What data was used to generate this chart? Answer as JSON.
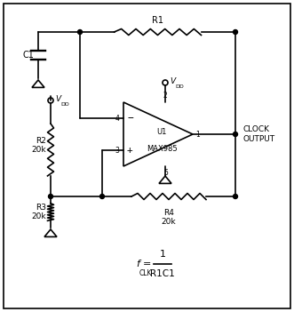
{
  "fig_width": 3.31,
  "fig_height": 3.51,
  "dpi": 100,
  "line_color": "#000000",
  "comp_label_1": "U1",
  "comp_label_2": "MAX985",
  "output_label": "CLOCK\nOUTPUT",
  "r1_label": "R1",
  "r2_label": "R2\n20k",
  "r3_label": "R3\n20k",
  "r4_label": "R4\n20k",
  "c1_label": "C1",
  "vdd_label": "V",
  "vdd_sub": "DD",
  "formula_f": "f",
  "formula_sub": "CLK",
  "formula_eq": "=",
  "formula_num": "1",
  "formula_den": "R1C1",
  "pin1": "1",
  "pin2": "2",
  "pin3": "3",
  "pin4": "4",
  "pin5": "5"
}
